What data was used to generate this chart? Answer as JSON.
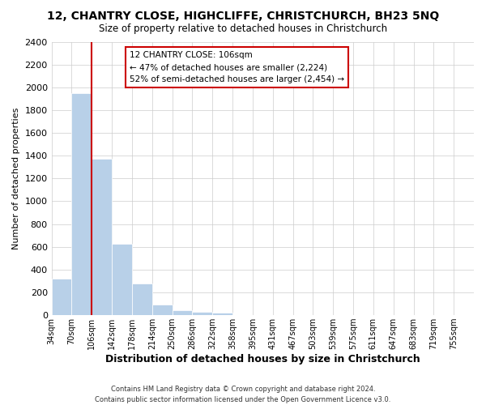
{
  "title_line1": "12, CHANTRY CLOSE, HIGHCLIFFE, CHRISTCHURCH, BH23 5NQ",
  "title_line2": "Size of property relative to detached houses in Christchurch",
  "xlabel": "Distribution of detached houses by size in Christchurch",
  "ylabel": "Number of detached properties",
  "bin_labels": [
    "34sqm",
    "70sqm",
    "106sqm",
    "142sqm",
    "178sqm",
    "214sqm",
    "250sqm",
    "286sqm",
    "322sqm",
    "358sqm",
    "395sqm",
    "431sqm",
    "467sqm",
    "503sqm",
    "539sqm",
    "575sqm",
    "611sqm",
    "647sqm",
    "683sqm",
    "719sqm",
    "755sqm"
  ],
  "bar_values": [
    320,
    1950,
    1370,
    630,
    275,
    95,
    45,
    30,
    20,
    0,
    0,
    0,
    0,
    0,
    0,
    0,
    0,
    0,
    0,
    0
  ],
  "bar_color": "#b8d0e8",
  "vline_x_index": 2,
  "vline_color": "#cc0000",
  "ylim": [
    0,
    2400
  ],
  "yticks": [
    0,
    200,
    400,
    600,
    800,
    1000,
    1200,
    1400,
    1600,
    1800,
    2000,
    2200,
    2400
  ],
  "annotation_title": "12 CHANTRY CLOSE: 106sqm",
  "annotation_line2": "← 47% of detached houses are smaller (2,224)",
  "annotation_line3": "52% of semi-detached houses are larger (2,454) →",
  "footer_line1": "Contains HM Land Registry data © Crown copyright and database right 2024.",
  "footer_line2": "Contains public sector information licensed under the Open Government Licence v3.0."
}
